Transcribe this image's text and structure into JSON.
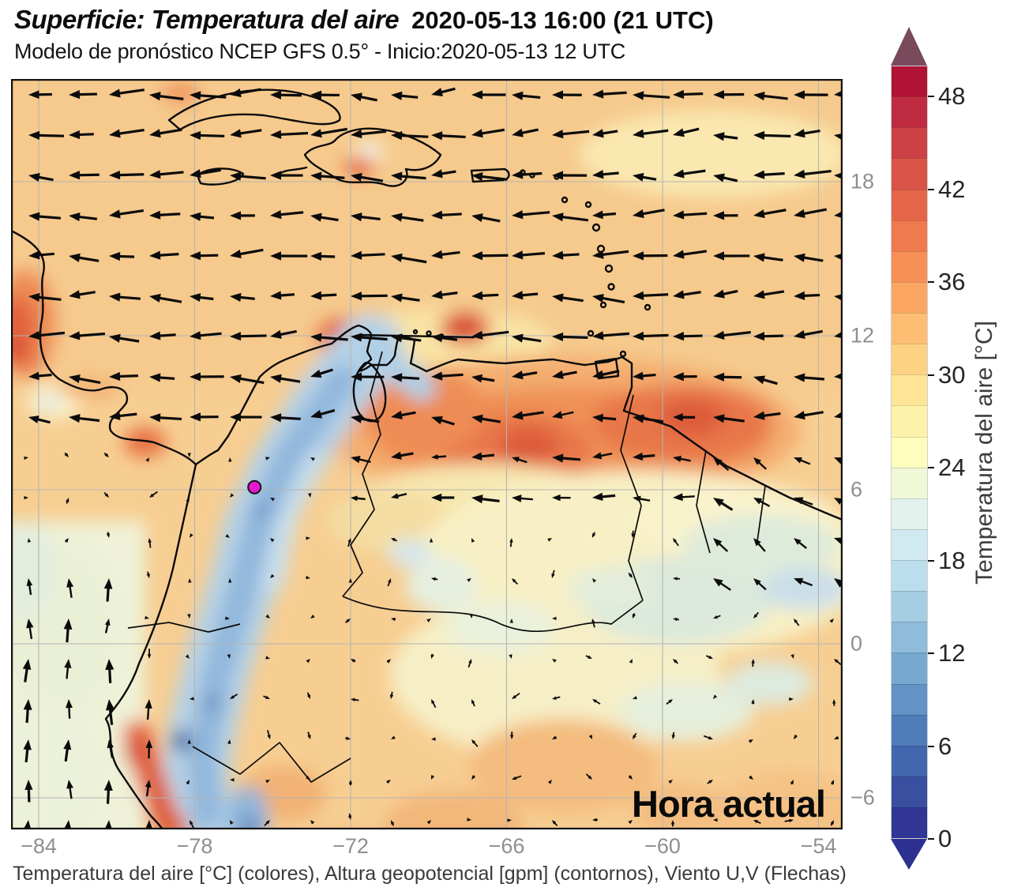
{
  "header": {
    "title_main": "Superficie: Temperatura del aire",
    "title_datetime": "2020-05-13 16:00 (21 UTC)",
    "subtitle": "Modelo de pronóstico NCEP GFS 0.5° - Inicio:2020-05-13 12 UTC"
  },
  "map": {
    "annotation": "Hora actual",
    "x_axis": {
      "tick_values": [
        -84,
        -78,
        -72,
        -66,
        -60,
        -54
      ],
      "tick_labels": [
        "−84",
        "−78",
        "−72",
        "−66",
        "−60",
        "−54"
      ]
    },
    "y_axis": {
      "tick_values": [
        18,
        12,
        6,
        0,
        -6
      ],
      "tick_labels": [
        "18",
        "12",
        "6",
        "0",
        "−6"
      ]
    },
    "marker": {
      "lon": -75.7,
      "lat": 6.1,
      "color": "#E519D3"
    },
    "grid_color": "#b4b4b4",
    "coastline_color": "#0b0b0b",
    "wind_arrow_color": "#0b0b0b",
    "wind_description": "Easterly trade winds over the Caribbean and northern Venezuela, weak variable winds inland, southerly winds along the Pacific coast"
  },
  "colorbar": {
    "label": "Temperatura del aire [°C]",
    "unit": "°C",
    "min": 0,
    "max": 50,
    "step": 2,
    "tick_values": [
      0,
      6,
      12,
      18,
      24,
      30,
      36,
      42,
      48
    ],
    "segment_colors_bottom_to_top": [
      "#313695",
      "#3A4FA0",
      "#4267AE",
      "#4F7DB9",
      "#6293C4",
      "#77A8D0",
      "#8FBCDA",
      "#A6CEE3",
      "#BCDEEC",
      "#D1E9F0",
      "#E2F2EC",
      "#F0F8D8",
      "#FDFDBE",
      "#FEF2AA",
      "#FEE495",
      "#FED283",
      "#FDBE74",
      "#FBA763",
      "#F69057",
      "#EF7A4E",
      "#E56549",
      "#D95347",
      "#CC4146",
      "#BF2C41",
      "#B01336"
    ],
    "under_arrow_color": "#2C3191",
    "over_arrow_color": "#784A5C",
    "tick_label_color": "#262626"
  },
  "caption": "Temperatura del aire [°C] (colores), Altura geopotencial [gpm] (contornos), Viento U,V (Flechas)"
}
